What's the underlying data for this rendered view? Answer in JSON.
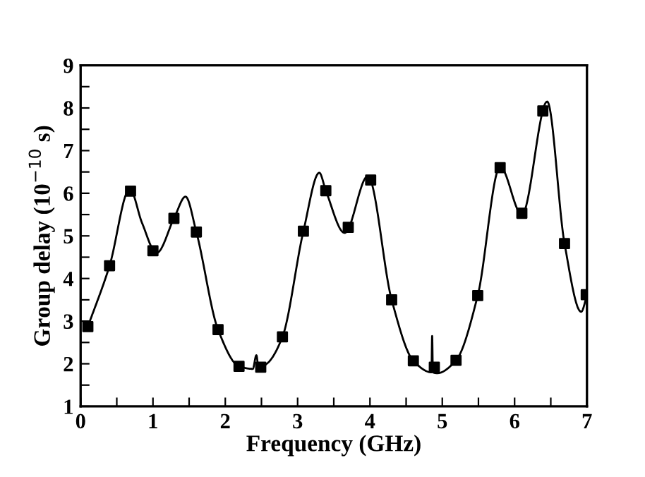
{
  "chart_data": {
    "type": "line",
    "xlabel": "Frequency (GHz)",
    "ylabel": "Group delay (10$^{−10}$ s)",
    "xlim": [
      0,
      7
    ],
    "ylim": [
      1,
      9
    ],
    "xticks": [
      0,
      {
        "value": 0.5,
        "label": null
      },
      1,
      {
        "value": 1.5,
        "label": null
      },
      2,
      {
        "value": 2.5,
        "label": null
      },
      3,
      {
        "value": 3.5,
        "label": null
      },
      4,
      {
        "value": 4.5,
        "label": null
      },
      5,
      {
        "value": 5.5,
        "label": null
      },
      6,
      {
        "value": 6.5,
        "label": null
      },
      7
    ],
    "yticks": [
      1,
      {
        "value": 1.5,
        "label": null
      },
      2,
      {
        "value": 2.5,
        "label": null
      },
      3,
      {
        "value": 3.5,
        "label": null
      },
      4,
      {
        "value": 4.5,
        "label": null
      },
      5,
      {
        "value": 5.5,
        "label": null
      },
      6,
      {
        "value": 6.5,
        "label": null
      },
      7,
      {
        "value": 7.5,
        "label": null
      },
      8,
      {
        "value": 8.5,
        "label": null
      },
      9
    ],
    "grid": false,
    "legend": false,
    "series": [
      {
        "color": "#000000",
        "marker": "none",
        "line_style": "solid",
        "x": [
          0.1,
          0.4,
          0.68,
          0.85,
          1.05,
          1.3,
          1.45,
          1.6,
          1.9,
          2.19,
          2.38,
          2.43,
          2.46,
          2.58,
          2.79,
          3.08,
          3.3,
          3.39,
          3.65,
          3.97,
          4.3,
          4.6,
          4.85,
          4.86,
          4.87,
          4.93,
          5.19,
          5.49,
          5.8,
          6.1,
          6.45,
          6.69,
          6.92,
          7.0
        ],
        "values": [
          2.87,
          4.3,
          6.1,
          5.3,
          4.6,
          5.45,
          5.92,
          5.09,
          2.8,
          1.94,
          1.88,
          2.2,
          1.9,
          2.01,
          2.63,
          5.11,
          6.48,
          6.06,
          5.07,
          6.4,
          3.5,
          2.07,
          1.8,
          2.65,
          1.8,
          1.78,
          2.08,
          3.6,
          6.62,
          5.5,
          8.15,
          4.82,
          3.22,
          3.6
        ]
      },
      {
        "type": "scatter",
        "color": "#000000",
        "marker": "square",
        "x": [
          0.1,
          0.4,
          0.69,
          1.0,
          1.29,
          1.6,
          1.9,
          2.19,
          2.49,
          2.79,
          3.08,
          3.39,
          3.7,
          4.01,
          4.3,
          4.6,
          4.89,
          5.19,
          5.49,
          5.8,
          6.1,
          6.39,
          6.69,
          6.99
        ],
        "values": [
          2.87,
          4.3,
          6.05,
          4.65,
          5.41,
          5.09,
          2.8,
          1.94,
          1.92,
          2.63,
          5.11,
          6.06,
          5.2,
          6.31,
          3.5,
          2.07,
          1.92,
          2.08,
          3.6,
          6.6,
          5.53,
          7.93,
          4.82,
          3.62
        ]
      }
    ]
  }
}
